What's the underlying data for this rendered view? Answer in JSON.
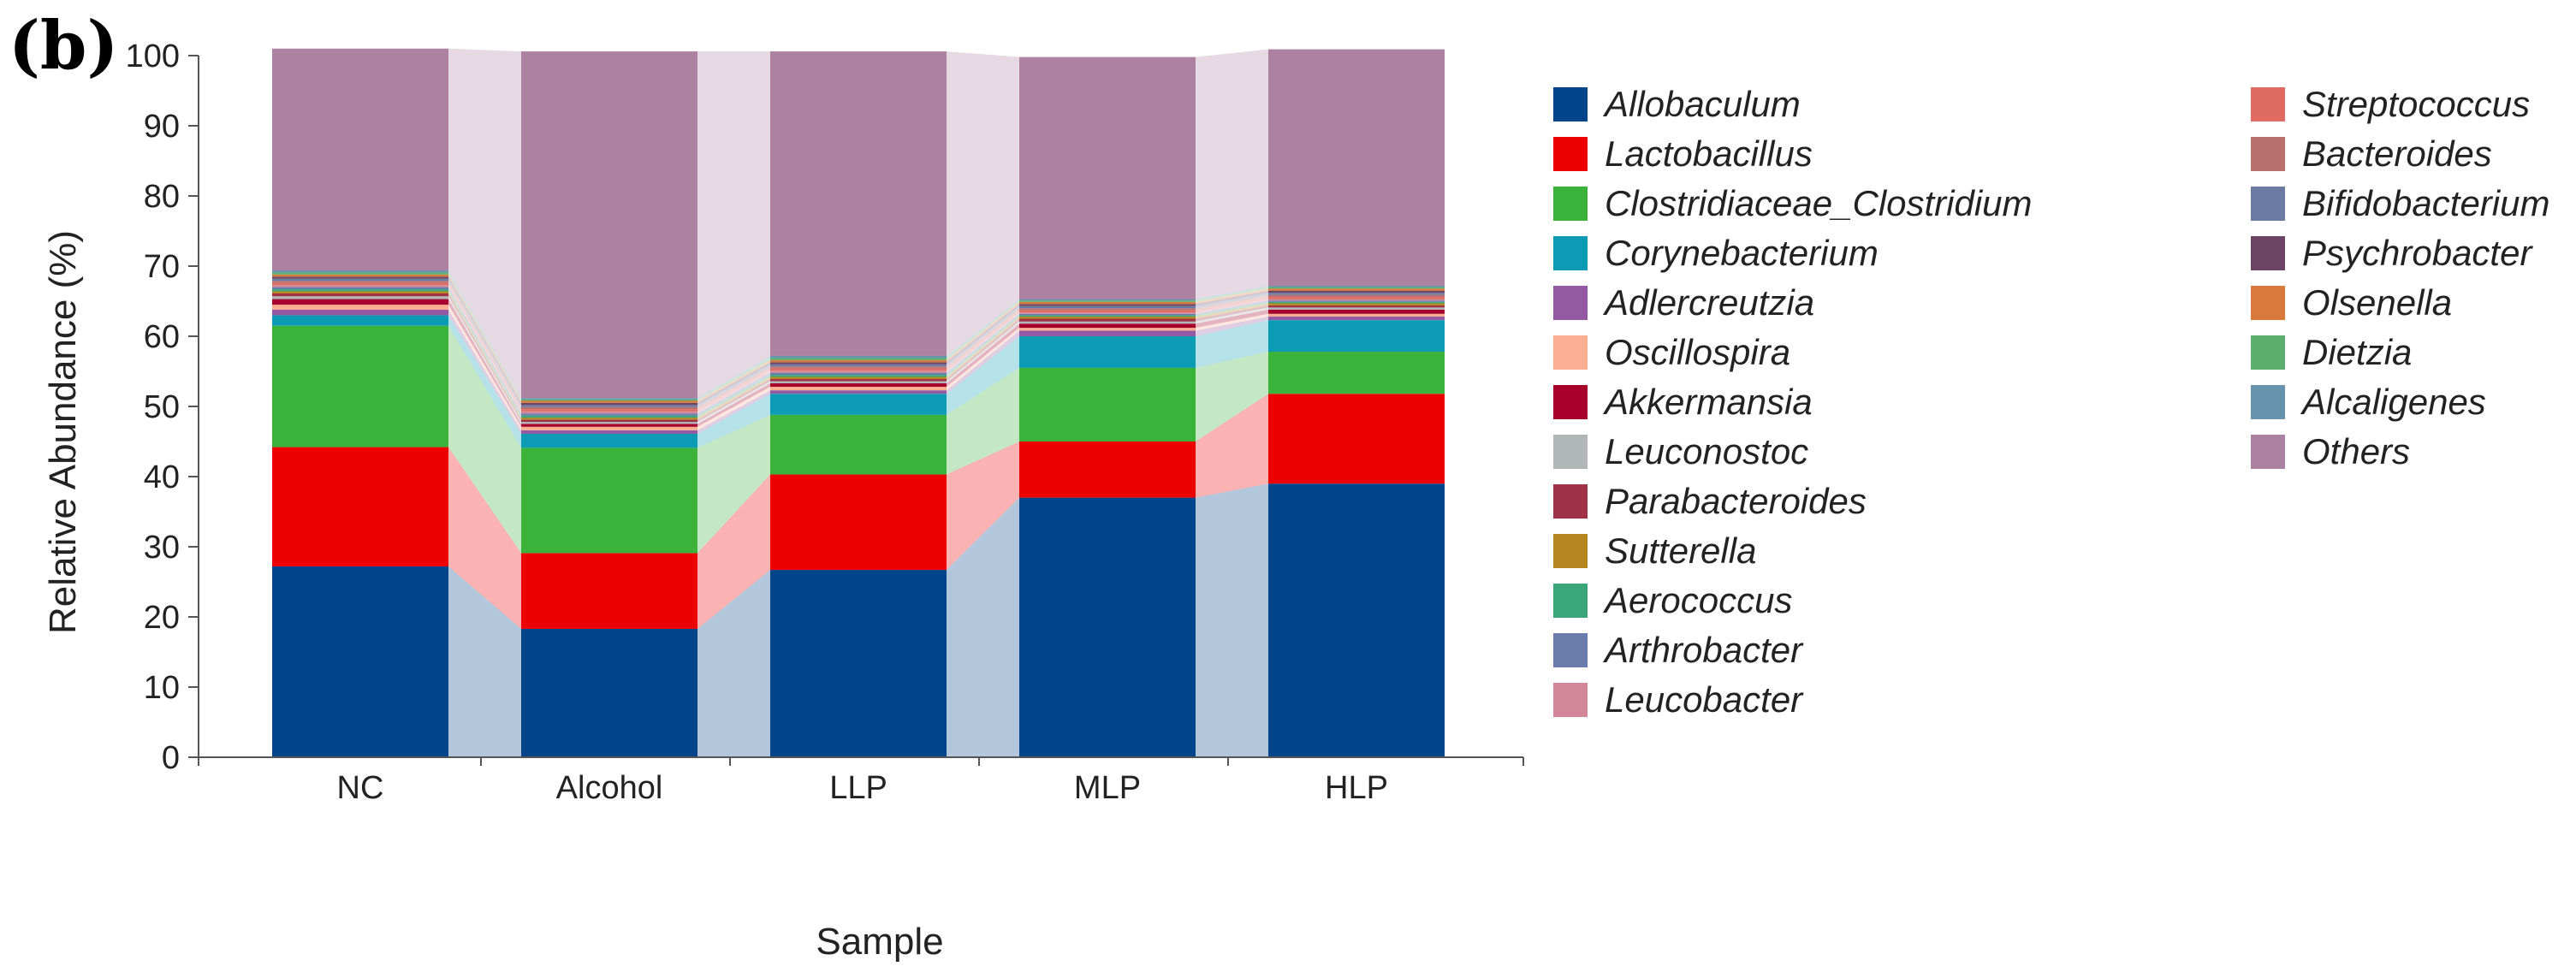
{
  "panel_label": "(b)",
  "chart_data": {
    "type": "bar",
    "stacked": true,
    "title": "",
    "xlabel": "Sample",
    "ylabel": "Relative Abundance (%)",
    "ylim": [
      0,
      100
    ],
    "yticks": [
      0,
      10,
      20,
      30,
      40,
      50,
      60,
      70,
      80,
      90,
      100
    ],
    "categories": [
      "NC",
      "Alcohol",
      "LLP",
      "MLP",
      "HLP"
    ],
    "series": [
      {
        "name": "Allobaculum",
        "color": "#03458b",
        "values": [
          27.2,
          18.3,
          26.7,
          37.0,
          39.0
        ]
      },
      {
        "name": "Lactobacillus",
        "color": "#ee0000",
        "values": [
          17.0,
          10.8,
          13.6,
          8.0,
          12.8
        ]
      },
      {
        "name": "Clostridiaceae_Clostridium",
        "color": "#3bb33b",
        "values": [
          17.3,
          15.0,
          8.5,
          10.5,
          6.0
        ]
      },
      {
        "name": "Corynebacterium",
        "color": "#0b9bb5",
        "values": [
          1.5,
          2.0,
          3.0,
          4.5,
          4.5
        ]
      },
      {
        "name": "Adlercreutzia",
        "color": "#9459a3",
        "values": [
          0.8,
          0.5,
          0.5,
          0.8,
          0.5
        ]
      },
      {
        "name": "Oscillospira",
        "color": "#fbae91",
        "values": [
          0.7,
          0.5,
          0.5,
          0.4,
          0.4
        ]
      },
      {
        "name": "Akkermansia",
        "color": "#a8002c",
        "values": [
          0.8,
          0.4,
          0.5,
          0.6,
          0.6
        ]
      },
      {
        "name": "Leuconostoc",
        "color": "#b1b6b8",
        "values": [
          0.4,
          0.3,
          0.3,
          0.3,
          0.3
        ]
      },
      {
        "name": "Parabacteroides",
        "color": "#9f3246",
        "values": [
          0.4,
          0.3,
          0.3,
          0.4,
          0.3
        ]
      },
      {
        "name": "Sutterella",
        "color": "#b5861f",
        "values": [
          0.3,
          0.3,
          0.3,
          0.3,
          0.3
        ]
      },
      {
        "name": "Aerococcus",
        "color": "#3aa67a",
        "values": [
          0.3,
          0.3,
          0.3,
          0.2,
          0.2
        ]
      },
      {
        "name": "Arthrobacter",
        "color": "#6a7cac",
        "values": [
          0.3,
          0.3,
          0.3,
          0.2,
          0.2
        ]
      },
      {
        "name": "Leucobacter",
        "color": "#d28899",
        "values": [
          0.3,
          0.3,
          0.3,
          0.2,
          0.2
        ]
      },
      {
        "name": "Streptococcus",
        "color": "#e06b62",
        "values": [
          0.3,
          0.3,
          0.3,
          0.3,
          0.3
        ]
      },
      {
        "name": "Bacteroides",
        "color": "#b8706c",
        "values": [
          0.3,
          0.3,
          0.3,
          0.3,
          0.3
        ]
      },
      {
        "name": "Bifidobacterium",
        "color": "#6b7ba4",
        "values": [
          0.3,
          0.3,
          0.3,
          0.3,
          0.3
        ]
      },
      {
        "name": "Psychrobacter",
        "color": "#6c4566",
        "values": [
          0.3,
          0.3,
          0.3,
          0.3,
          0.3
        ]
      },
      {
        "name": "Olsenella",
        "color": "#d9793b",
        "values": [
          0.3,
          0.3,
          0.3,
          0.3,
          0.3
        ]
      },
      {
        "name": "Dietzia",
        "color": "#5dae6e",
        "values": [
          0.3,
          0.2,
          0.3,
          0.2,
          0.2
        ]
      },
      {
        "name": "Alcaligenes",
        "color": "#6793ad",
        "values": [
          0.3,
          0.2,
          0.3,
          0.2,
          0.2
        ]
      },
      {
        "name": "Others",
        "color": "#ad81a2",
        "values": [
          31.6,
          49.4,
          43.4,
          34.5,
          33.7
        ]
      }
    ],
    "legend_position": "right"
  }
}
